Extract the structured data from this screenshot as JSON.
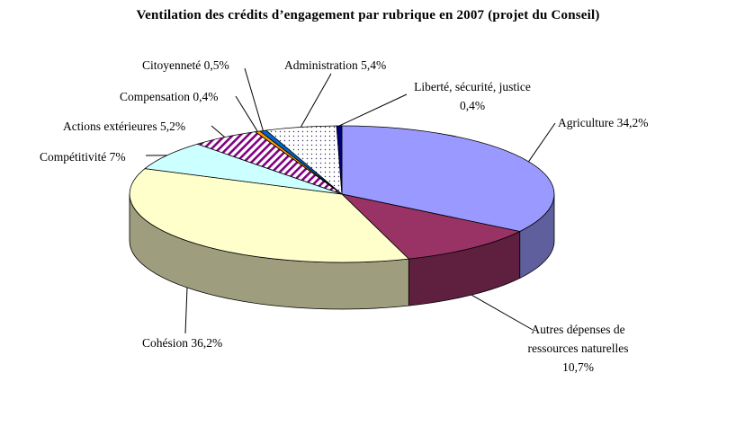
{
  "chart_data": {
    "type": "pie",
    "style": "3d",
    "title": "Ventilation des crédits d’engagement par rubrique en 2007 (projet du Conseil)",
    "direction": "clockwise",
    "start_angle_deg": 0,
    "background": "#FFFFFF",
    "leader_lines": true,
    "total": 100,
    "slices": [
      {
        "label": "Agriculture",
        "value": 34.2,
        "display": "Agriculture 34,2%",
        "color": "#9999FF"
      },
      {
        "label": "Autres dépenses de ressources naturelles",
        "value": 10.7,
        "display": "Autres dépenses de\nressources naturelles\n10,7%",
        "color": "#993366"
      },
      {
        "label": "Cohésion",
        "value": 36.2,
        "display": "Cohésion 36,2%",
        "color": "#FFFFCC"
      },
      {
        "label": "Compétitivité",
        "value": 7,
        "display": "Compétitivité 7%",
        "color": "#CCFFFF"
      },
      {
        "label": "Actions extérieures",
        "value": 5.2,
        "display": "Actions extérieures 5,2%",
        "color": "#800080",
        "pattern": "diagonal-stripes",
        "pattern_bg": "#FFFFFF"
      },
      {
        "label": "Compensation",
        "value": 0.4,
        "display": "Compensation 0,4%",
        "color": "#FF9900"
      },
      {
        "label": "Citoyenneté",
        "value": 0.5,
        "display": "Citoyenneté 0,5%",
        "color": "#0066CC"
      },
      {
        "label": "Administration",
        "value": 5.4,
        "display": "Administration 5,4%",
        "color": "#333366",
        "pattern": "dots",
        "pattern_bg": "#FFFFFF"
      },
      {
        "label": "Liberté, sécurité, justice",
        "value": 0.4,
        "display": "Liberté, sécurité, justice\n0,4%",
        "color": "#000080"
      }
    ]
  }
}
